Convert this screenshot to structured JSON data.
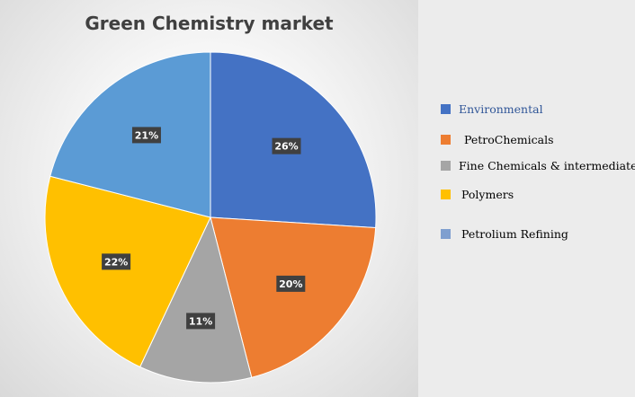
{
  "chart_data": {
    "type": "pie",
    "title": "Green Chemistry market",
    "categories": [
      "Environmental",
      "PetroChemicals",
      "Fine Chemicals & intermediate",
      "Polymers",
      "Petrolium Refining"
    ],
    "values": [
      26,
      20,
      11,
      22,
      21
    ],
    "data_labels": [
      "26%",
      "20%",
      "11%",
      "22%",
      "21%"
    ],
    "colors": [
      "#4472C4",
      "#ED7D31",
      "#A5A5A5",
      "#FFC000",
      "#5B9BD5"
    ],
    "legend": {
      "position": "right",
      "items": [
        {
          "label": "Environmental",
          "color": "#4472C4",
          "label_color": "#2F5597"
        },
        {
          "label": "PetroChemicals",
          "color": "#ED7D31",
          "label_color": "#000000"
        },
        {
          "label": "Fine Chemicals & intermediate",
          "color": "#A5A5A5",
          "label_color": "#000000"
        },
        {
          "label": "Polymers",
          "color": "#FFC000",
          "label_color": "#000000"
        },
        {
          "label": "Petrolium Refining",
          "color": "#7F9FCF",
          "label_color": "#000000"
        }
      ]
    }
  }
}
